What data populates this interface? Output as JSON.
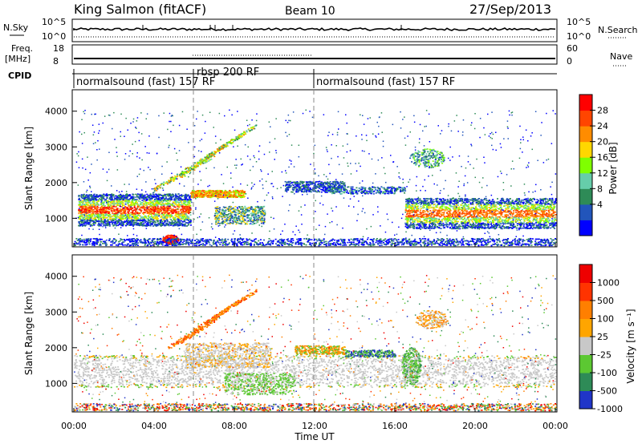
{
  "header": {
    "station": "King Salmon (fitACF)",
    "beam": "Beam 10",
    "date": "27/Sep/2013"
  },
  "noise_panel": {
    "left_label": "N.Sky",
    "right_label": "N.Search",
    "left_ticks": [
      "10^5",
      "10^0"
    ],
    "right_ticks": [
      "10^5",
      "10^0"
    ]
  },
  "freq_panel": {
    "left_label_1": "Freq.",
    "left_label_2": "[MHz]",
    "right_label": "Nave",
    "left_ticks": [
      "18",
      "8"
    ],
    "right_ticks": [
      "60",
      "0"
    ]
  },
  "cpid_panel": {
    "label": "CPID",
    "segments": [
      {
        "name": "normalsound (fast) 157 RF",
        "start_hour": 0
      },
      {
        "name": "rbsp 200 RF",
        "start_hour": 6
      },
      {
        "name": "normalsound (fast) 157 RF",
        "start_hour": 12
      }
    ]
  },
  "x_axis": {
    "label": "Time UT",
    "ticks": [
      "00:00",
      "04:00",
      "08:00",
      "12:00",
      "16:00",
      "20:00",
      "00:00"
    ]
  },
  "power_panel": {
    "ylabel": "Slant Range [km]",
    "yticks": [
      "4000",
      "3000",
      "2000",
      "1000"
    ],
    "colorbar_label": "Power [dB]",
    "colorbar_ticks": [
      "28",
      "24",
      "20",
      "16",
      "12",
      "8",
      "4"
    ],
    "colors": [
      "#0000ff",
      "#2255bb",
      "#2e8b57",
      "#66cdaa",
      "#7fff00",
      "#ffd700",
      "#ff8c00",
      "#ff4500",
      "#ff0000"
    ]
  },
  "velocity_panel": {
    "ylabel": "Slant Range [km]",
    "yticks": [
      "4000",
      "3000",
      "2000",
      "1000"
    ],
    "colorbar_label": "Velocity [m s⁻¹]",
    "colorbar_ticks": [
      "1000",
      "500",
      "100",
      "25",
      "-25",
      "-100",
      "-500",
      "-1000"
    ],
    "colors": [
      "#2035c8",
      "#2e8b57",
      "#5cc832",
      "#c8c8c8",
      "#ffa500",
      "#ff7f00",
      "#ff3300",
      "#ee0000"
    ]
  },
  "chart_data": {
    "type": "heatmap",
    "title": "King Salmon (fitACF)  Beam 10  27/Sep/2013",
    "xlabel": "Time UT",
    "ylabel": "Slant Range [km]",
    "xlim_hours": [
      0,
      24
    ],
    "ylim_km": [
      200,
      4600
    ],
    "features": [
      {
        "panel": "power",
        "t_start": 0.2,
        "t_end": 6.0,
        "range_km": 1250,
        "power_db": 18
      },
      {
        "panel": "power",
        "t_start": 16.5,
        "t_end": 24.0,
        "range_km": 1150,
        "power_db": 20
      },
      {
        "panel": "power",
        "t_start": 4.5,
        "t_end": 5.3,
        "range_km": 400,
        "power_db": 28
      },
      {
        "panel": "power",
        "t_start": 5.5,
        "t_end": 8.5,
        "range_km": 2800,
        "power_db": 18
      },
      {
        "panel": "power",
        "t_start": 17.0,
        "t_end": 18.5,
        "range_km": 2800,
        "power_db": 14
      },
      {
        "panel": "velocity",
        "t_start": 6.5,
        "t_end": 9.5,
        "range_km": 3000,
        "velocity_ms": -150
      },
      {
        "panel": "velocity",
        "t_start": 16.5,
        "t_end": 17.2,
        "range_km": 1500,
        "velocity_ms": 80
      },
      {
        "panel": "velocity",
        "t_start": 0.0,
        "t_end": 24.0,
        "range_km": 1300,
        "velocity_ms": 0
      }
    ]
  }
}
